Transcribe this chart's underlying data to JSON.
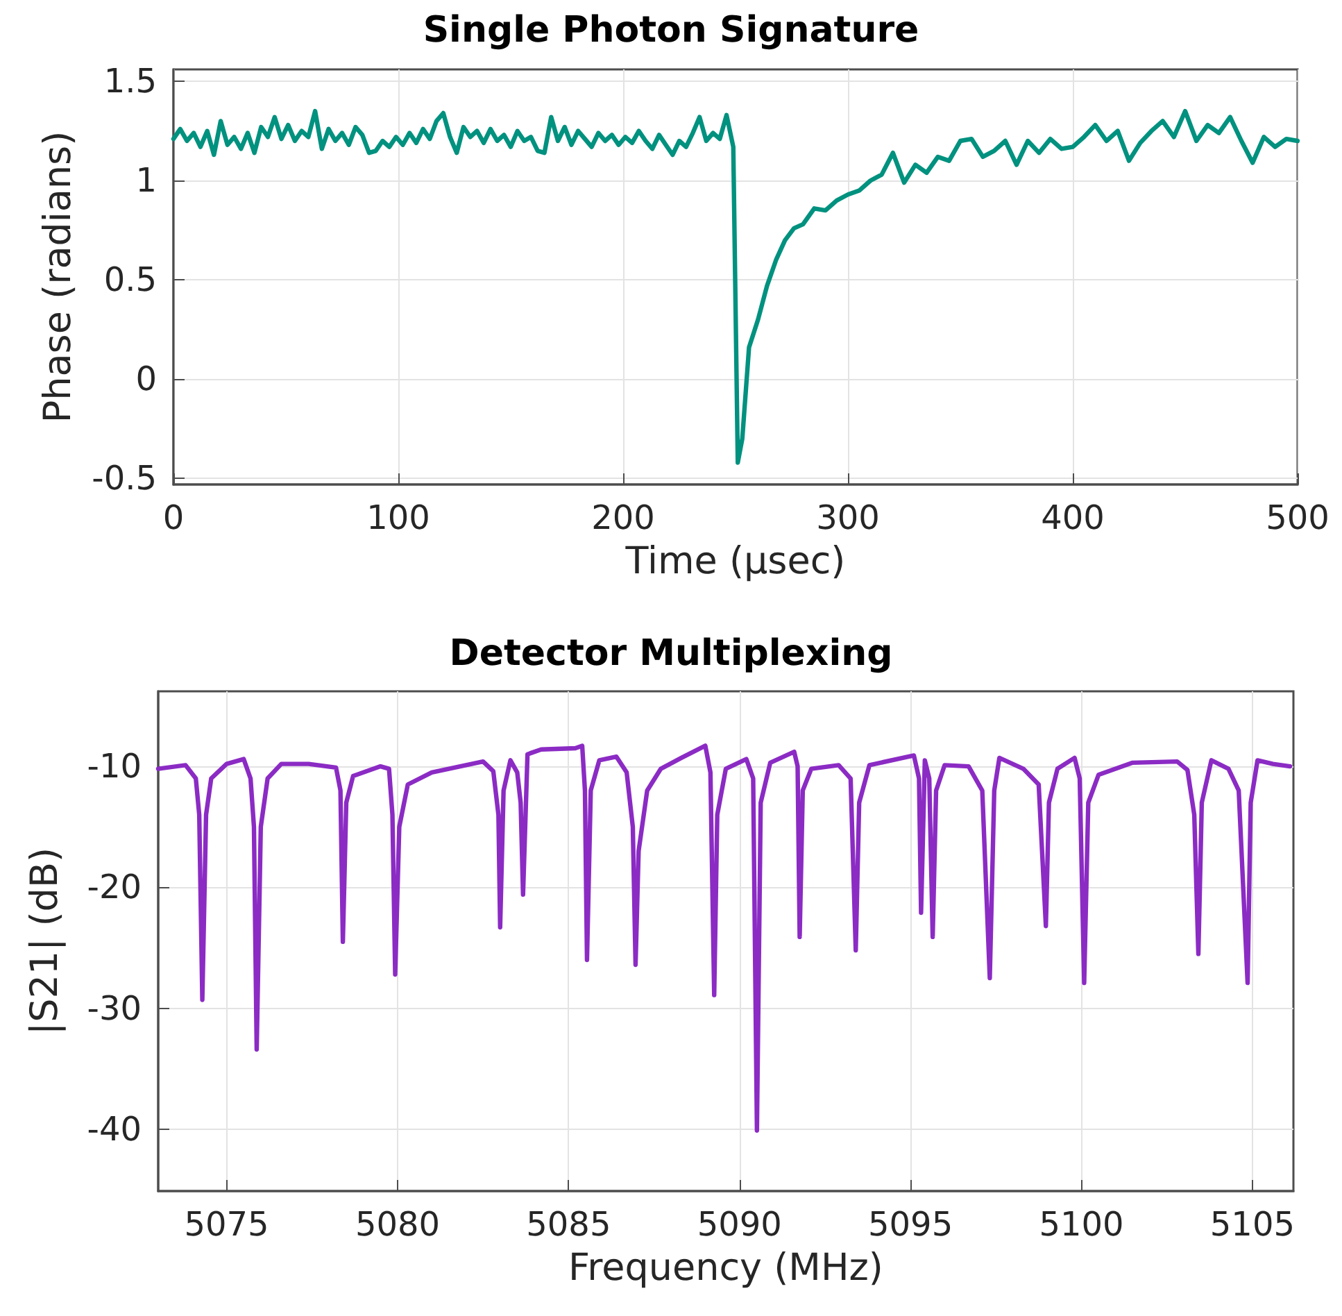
{
  "chart_data": [
    {
      "type": "line",
      "title": "Single Photon Signature",
      "xlabel": "Time (μsec)",
      "ylabel": "Phase (radians)",
      "x": [
        0,
        3,
        6,
        9,
        12,
        15,
        18,
        21,
        24,
        27,
        30,
        33,
        36,
        39,
        42,
        45,
        48,
        51,
        54,
        57,
        60,
        63,
        66,
        69,
        72,
        75,
        78,
        81,
        84,
        87,
        90,
        93,
        96,
        99,
        102,
        105,
        108,
        111,
        114,
        117,
        120,
        123,
        126,
        129,
        132,
        135,
        138,
        141,
        144,
        147,
        150,
        153,
        156,
        159,
        162,
        165,
        168,
        171,
        174,
        177,
        180,
        183,
        186,
        189,
        192,
        195,
        198,
        201,
        204,
        207,
        210,
        213,
        216,
        219,
        222,
        225,
        228,
        231,
        234,
        237,
        240,
        243,
        246,
        249,
        251,
        253,
        256,
        260,
        264,
        268,
        272,
        276,
        280,
        285,
        290,
        295,
        300,
        305,
        310,
        315,
        320,
        325,
        330,
        335,
        340,
        345,
        350,
        355,
        360,
        365,
        370,
        375,
        380,
        385,
        390,
        395,
        400,
        405,
        410,
        415,
        420,
        425,
        430,
        435,
        440,
        445,
        450,
        455,
        460,
        465,
        470,
        475,
        480,
        485,
        490,
        495,
        500
      ],
      "series": [
        {
          "color": "#00917f",
          "values": [
            1.21,
            1.26,
            1.2,
            1.24,
            1.17,
            1.25,
            1.13,
            1.3,
            1.18,
            1.22,
            1.16,
            1.24,
            1.14,
            1.27,
            1.22,
            1.32,
            1.21,
            1.28,
            1.2,
            1.25,
            1.22,
            1.35,
            1.16,
            1.26,
            1.2,
            1.24,
            1.18,
            1.27,
            1.23,
            1.14,
            1.15,
            1.2,
            1.17,
            1.22,
            1.18,
            1.24,
            1.19,
            1.26,
            1.21,
            1.3,
            1.34,
            1.22,
            1.14,
            1.27,
            1.22,
            1.25,
            1.19,
            1.26,
            1.2,
            1.23,
            1.17,
            1.25,
            1.2,
            1.22,
            1.15,
            1.14,
            1.32,
            1.2,
            1.27,
            1.18,
            1.25,
            1.21,
            1.17,
            1.24,
            1.2,
            1.23,
            1.18,
            1.22,
            1.19,
            1.25,
            1.2,
            1.16,
            1.23,
            1.18,
            1.13,
            1.2,
            1.17,
            1.24,
            1.32,
            1.2,
            1.24,
            1.21,
            1.33,
            1.17,
            -0.42,
            -0.3,
            0.16,
            0.3,
            0.47,
            0.6,
            0.7,
            0.76,
            0.78,
            0.86,
            0.85,
            0.9,
            0.93,
            0.95,
            1.0,
            1.03,
            1.14,
            0.99,
            1.08,
            1.04,
            1.12,
            1.1,
            1.2,
            1.21,
            1.12,
            1.15,
            1.2,
            1.08,
            1.2,
            1.14,
            1.21,
            1.16,
            1.17,
            1.22,
            1.28,
            1.2,
            1.25,
            1.1,
            1.19,
            1.25,
            1.3,
            1.22,
            1.35,
            1.2,
            1.28,
            1.24,
            1.32,
            1.2,
            1.09,
            1.22,
            1.17,
            1.21,
            1.2
          ]
        }
      ],
      "xlim": [
        0,
        500
      ],
      "xticks": [
        0,
        100,
        200,
        300,
        400,
        500
      ],
      "ylim": [
        -0.53,
        1.56
      ],
      "yticks": [
        {
          "value": -0.5,
          "label": "-0.5"
        },
        0,
        0.5,
        1,
        1.5
      ],
      "grid": true,
      "marker": "none",
      "line_style": "solid"
    },
    {
      "type": "line",
      "title": "Detector Multiplexing",
      "xlabel": "Frequency (MHz)",
      "ylabel": "|S21| (dB)",
      "x": [
        5073,
        5073.8,
        5074.1,
        5074.2,
        5074.29,
        5074.4,
        5074.55,
        5075,
        5075.5,
        5075.7,
        5075.8,
        5075.88,
        5076.0,
        5076.2,
        5076.6,
        5077.4,
        5078.2,
        5078.33,
        5078.4,
        5078.5,
        5078.7,
        5079.5,
        5079.75,
        5079.85,
        5079.93,
        5080.05,
        5080.3,
        5081,
        5082.5,
        5082.8,
        5082.95,
        5083.0,
        5083.1,
        5083.3,
        5083.5,
        5083.6,
        5083.67,
        5083.8,
        5084.2,
        5085.2,
        5085.4,
        5085.48,
        5085.54,
        5085.65,
        5085.9,
        5086.4,
        5086.7,
        5086.88,
        5086.96,
        5087.05,
        5087.3,
        5087.7,
        5088.3,
        5089.0,
        5089.15,
        5089.26,
        5089.35,
        5089.6,
        5090.2,
        5090.4,
        5090.51,
        5090.62,
        5090.9,
        5091.6,
        5091.7,
        5091.76,
        5091.85,
        5092.1,
        5092.9,
        5093.25,
        5093.4,
        5093.5,
        5093.8,
        5095.1,
        5095.25,
        5095.31,
        5095.42,
        5095.55,
        5095.65,
        5095.75,
        5096.0,
        5096.7,
        5097.1,
        5097.32,
        5097.45,
        5097.6,
        5098.3,
        5098.75,
        5098.96,
        5099.05,
        5099.3,
        5099.8,
        5099.95,
        5100.08,
        5100.2,
        5100.5,
        5101.5,
        5102.8,
        5103.1,
        5103.3,
        5103.42,
        5103.52,
        5103.8,
        5104.3,
        5104.6,
        5104.86,
        5104.95,
        5105.15,
        5105.6,
        5106.1
      ],
      "series": [
        {
          "color": "#8b2bc4",
          "values": [
            -10.2,
            -9.9,
            -11,
            -14,
            -29.3,
            -14,
            -11,
            -9.8,
            -9.4,
            -11,
            -15,
            -33.4,
            -15,
            -11,
            -9.8,
            -9.8,
            -10.1,
            -12,
            -24.5,
            -13,
            -10.8,
            -10,
            -10.2,
            -14,
            -27.2,
            -15,
            -11.5,
            -10.5,
            -9.6,
            -10.4,
            -14,
            -23.3,
            -12,
            -9.5,
            -10.5,
            -13,
            -20.6,
            -9,
            -8.6,
            -8.5,
            -8.3,
            -12,
            -26,
            -12,
            -9.5,
            -9.2,
            -10.5,
            -15,
            -26.4,
            -17,
            -12,
            -10.2,
            -9.3,
            -8.3,
            -10.5,
            -28.9,
            -14,
            -10.2,
            -9.4,
            -11,
            -40.1,
            -13,
            -9.7,
            -8.8,
            -10,
            -24.1,
            -12,
            -10.2,
            -9.9,
            -11,
            -25.2,
            -13,
            -9.9,
            -9.1,
            -11,
            -22.1,
            -9.5,
            -11,
            -24.1,
            -12,
            -9.9,
            -10,
            -12,
            -27.5,
            -12,
            -9.3,
            -10.2,
            -11.5,
            -23.2,
            -13,
            -10.2,
            -9.3,
            -11,
            -27.9,
            -13,
            -10.7,
            -9.7,
            -9.6,
            -10.3,
            -14,
            -25.5,
            -13,
            -9.5,
            -10.2,
            -12,
            -27.9,
            -13,
            -9.5,
            -9.8,
            -10
          ]
        }
      ],
      "xlim": [
        5073,
        5106.2
      ],
      "xticks": [
        5075,
        5080,
        5085,
        5090,
        5095,
        5100,
        5105
      ],
      "ylim": [
        -45.1,
        -3.8
      ],
      "yticks": [
        -40,
        -30,
        -20,
        -10
      ],
      "grid": true,
      "marker": "none",
      "line_style": "solid"
    }
  ]
}
